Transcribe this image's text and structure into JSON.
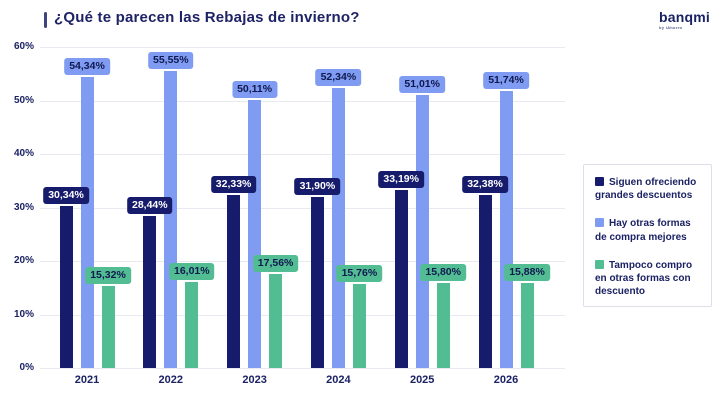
{
  "header": {
    "title": "¿Qué te parecen las Rebajas de invierno?"
  },
  "logo": {
    "brand": "banqmi",
    "tagline": "by iAhorro"
  },
  "colors": {
    "navy": "#161c6b",
    "blue": "#7f9cf2",
    "green": "#52bd93",
    "label_text_dark": "#10194f",
    "label_text_light": "#ffffff",
    "text": "#1b2264",
    "grid": "#e9eaf1"
  },
  "chart_data": {
    "type": "bar",
    "title": "¿Qué te parecen las Rebajas de invierno?",
    "categories": [
      "2021",
      "2022",
      "2023",
      "2024",
      "2025",
      "2026"
    ],
    "series": [
      {
        "name": "Siguen ofreciendo grandes descuentos",
        "color_key": "navy",
        "values": [
          30.34,
          28.44,
          32.33,
          31.9,
          33.19,
          32.38
        ],
        "labels": [
          "30,34%",
          "28,44%",
          "32,33%",
          "31,90%",
          "33,19%",
          "32,38%"
        ]
      },
      {
        "name": "Hay otras formas de compra mejores",
        "color_key": "blue",
        "values": [
          54.34,
          55.55,
          50.11,
          52.34,
          51.01,
          51.74
        ],
        "labels": [
          "54,34%",
          "55,55%",
          "50,11%",
          "52,34%",
          "51,01%",
          "51,74%"
        ]
      },
      {
        "name": "Tampoco compro en otras formas con descuento",
        "color_key": "green",
        "values": [
          15.32,
          16.01,
          17.56,
          15.76,
          15.8,
          15.88
        ],
        "labels": [
          "15,32%",
          "16,01%",
          "17,56%",
          "15,76%",
          "15,80%",
          "15,88%"
        ]
      }
    ],
    "yticks": [
      "0%",
      "10%",
      "20%",
      "30%",
      "40%",
      "50%",
      "60%"
    ],
    "ylim": [
      0,
      60
    ],
    "grid": true,
    "legend_position": "right"
  },
  "legend": {
    "items": [
      {
        "label": "Siguen ofreciendo grandes descuentos",
        "color_key": "navy"
      },
      {
        "label": "Hay otras formas de compra mejores",
        "color_key": "blue"
      },
      {
        "label": "Tampoco compro en otras formas con descuento",
        "color_key": "green"
      }
    ]
  }
}
